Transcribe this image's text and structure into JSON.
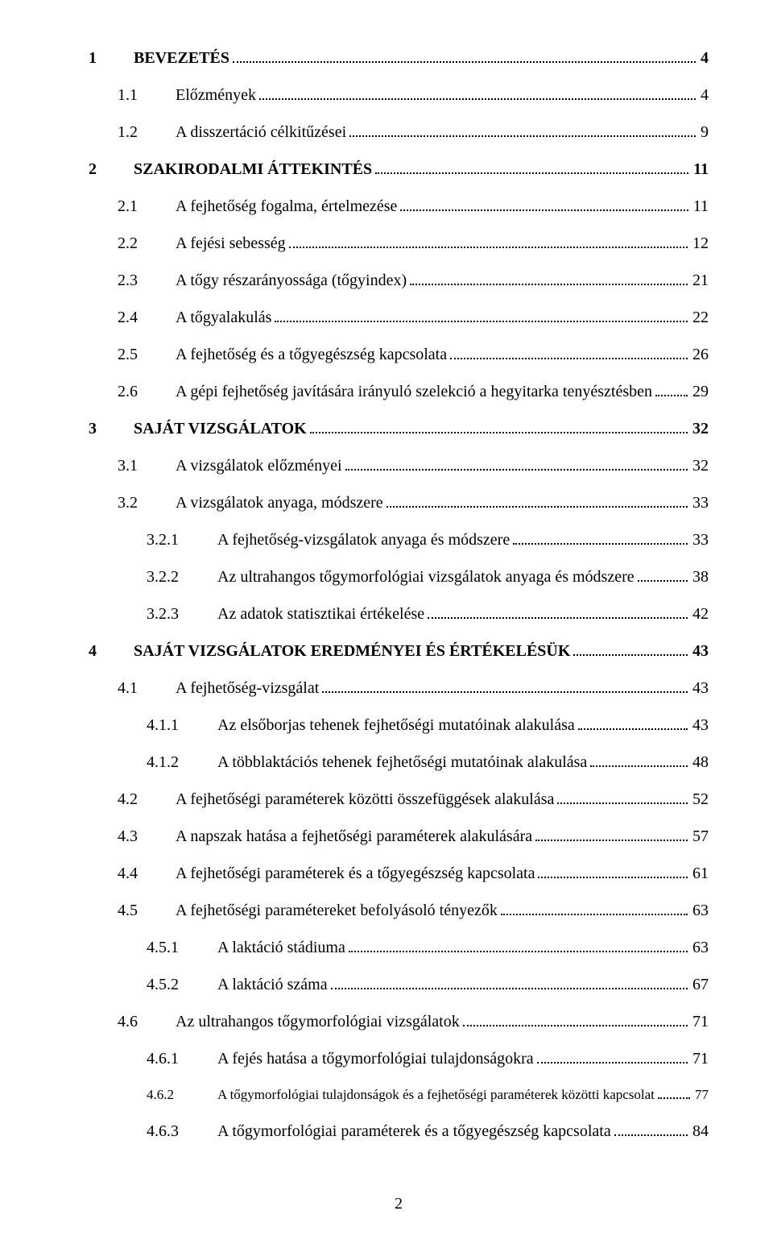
{
  "toc": [
    {
      "level": 1,
      "num": "1",
      "title": "BEVEZETÉS",
      "page": "4",
      "small": false
    },
    {
      "level": 2,
      "num": "1.1",
      "title": "Előzmények",
      "page": "4",
      "small": false
    },
    {
      "level": 2,
      "num": "1.2",
      "title": "A disszertáció célkitűzései",
      "page": "9",
      "small": false
    },
    {
      "level": 1,
      "num": "2",
      "title": "SZAKIRODALMI ÁTTEKINTÉS",
      "page": "11",
      "small": false
    },
    {
      "level": 2,
      "num": "2.1",
      "title": "A fejhetőség fogalma, értelmezése",
      "page": "11",
      "small": false
    },
    {
      "level": 2,
      "num": "2.2",
      "title": "A fejési sebesség",
      "page": "12",
      "small": false
    },
    {
      "level": 2,
      "num": "2.3",
      "title": "A tőgy részarányossága (tőgyindex)",
      "page": "21",
      "small": false
    },
    {
      "level": 2,
      "num": "2.4",
      "title": "A tőgyalakulás",
      "page": "22",
      "small": false
    },
    {
      "level": 2,
      "num": "2.5",
      "title": "A fejhetőség és a tőgyegészség kapcsolata",
      "page": "26",
      "small": false
    },
    {
      "level": 2,
      "num": "2.6",
      "title": "A gépi fejhetőség javítására irányuló szelekció a hegyitarka tenyésztésben",
      "page": "29",
      "small": false
    },
    {
      "level": 1,
      "num": "3",
      "title": "SAJÁT VIZSGÁLATOK",
      "page": "32",
      "small": false
    },
    {
      "level": 2,
      "num": "3.1",
      "title": "A vizsgálatok előzményei",
      "page": "32",
      "small": false
    },
    {
      "level": 2,
      "num": "3.2",
      "title": "A vizsgálatok anyaga, módszere",
      "page": "33",
      "small": false
    },
    {
      "level": 3,
      "num": "3.2.1",
      "title": "A fejhetőség-vizsgálatok anyaga és módszere",
      "page": "33",
      "small": false
    },
    {
      "level": 3,
      "num": "3.2.2",
      "title": "Az ultrahangos tőgymorfológiai vizsgálatok anyaga és módszere",
      "page": "38",
      "small": false
    },
    {
      "level": 3,
      "num": "3.2.3",
      "title": "Az adatok statisztikai értékelése",
      "page": "42",
      "small": false
    },
    {
      "level": 1,
      "num": "4",
      "title": "SAJÁT VIZSGÁLATOK EREDMÉNYEI ÉS ÉRTÉKELÉSÜK",
      "page": "43",
      "small": false
    },
    {
      "level": 2,
      "num": "4.1",
      "title": "A fejhetőség-vizsgálat",
      "page": "43",
      "small": false
    },
    {
      "level": 3,
      "num": "4.1.1",
      "title": "Az elsőborjas tehenek fejhetőségi mutatóinak alakulása",
      "page": "43",
      "small": false
    },
    {
      "level": 3,
      "num": "4.1.2",
      "title": "A többlaktációs tehenek fejhetőségi mutatóinak alakulása",
      "page": "48",
      "small": false
    },
    {
      "level": 2,
      "num": "4.2",
      "title": "A fejhetőségi paraméterek közötti összefüggések alakulása",
      "page": "52",
      "small": false
    },
    {
      "level": 2,
      "num": "4.3",
      "title": "A napszak hatása a fejhetőségi paraméterek alakulására",
      "page": "57",
      "small": false
    },
    {
      "level": 2,
      "num": "4.4",
      "title": "A fejhetőségi paraméterek és a tőgyegészség kapcsolata",
      "page": "61",
      "small": false
    },
    {
      "level": 2,
      "num": "4.5",
      "title": "A fejhetőségi paramétereket befolyásoló tényezők",
      "page": "63",
      "small": false
    },
    {
      "level": 3,
      "num": "4.5.1",
      "title": "A laktáció stádiuma",
      "page": "63",
      "small": false
    },
    {
      "level": 3,
      "num": "4.5.2",
      "title": "A laktáció száma",
      "page": "67",
      "small": false
    },
    {
      "level": 2,
      "num": "4.6",
      "title": "Az ultrahangos tőgymorfológiai vizsgálatok",
      "page": "71",
      "small": false
    },
    {
      "level": 3,
      "num": "4.6.1",
      "title": "A fejés hatása a tőgymorfológiai tulajdonságokra",
      "page": "71",
      "small": false
    },
    {
      "level": 3,
      "num": "4.6.2",
      "title": "A tőgymorfológiai tulajdonságok és a fejhetőségi paraméterek közötti kapcsolat",
      "page": "77",
      "small": true
    },
    {
      "level": 3,
      "num": "4.6.3",
      "title": "A tőgymorfológiai paraméterek és a tőgyegészség kapcsolata",
      "page": "84",
      "small": false
    }
  ],
  "page_number": "2"
}
